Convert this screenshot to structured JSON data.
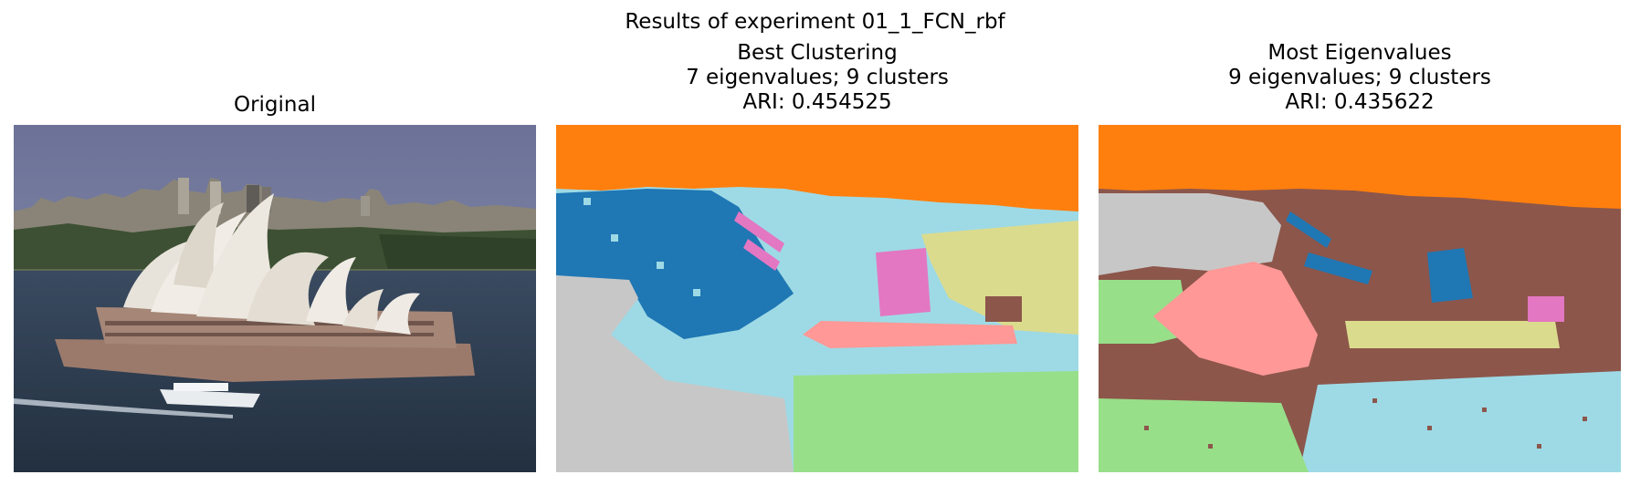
{
  "figure": {
    "suptitle": "Results of experiment 01_1_FCN_rbf"
  },
  "panels": [
    {
      "id": "original",
      "title_lines": [
        "Original"
      ],
      "image": "photo of Sydney Opera House with harbour, city skyline and a ferry"
    },
    {
      "id": "best",
      "title_lines": [
        "Best Clustering",
        "7 eigenvalues; 9 clusters",
        "ARI: 0.454525"
      ]
    },
    {
      "id": "most",
      "title_lines": [
        "Most Eigenvalues",
        "9 eigenvalues; 9 clusters",
        "ARI: 0.435622"
      ]
    }
  ],
  "colors": {
    "orange": "#ff7f0e",
    "blue": "#1f77b4",
    "lightblue": "#9edae5",
    "pink": "#e377c2",
    "salmon": "#ff9896",
    "lightgreen": "#98df8a",
    "gray": "#c7c7c7",
    "brown": "#8c564b",
    "khaki": "#dbdb8d"
  }
}
